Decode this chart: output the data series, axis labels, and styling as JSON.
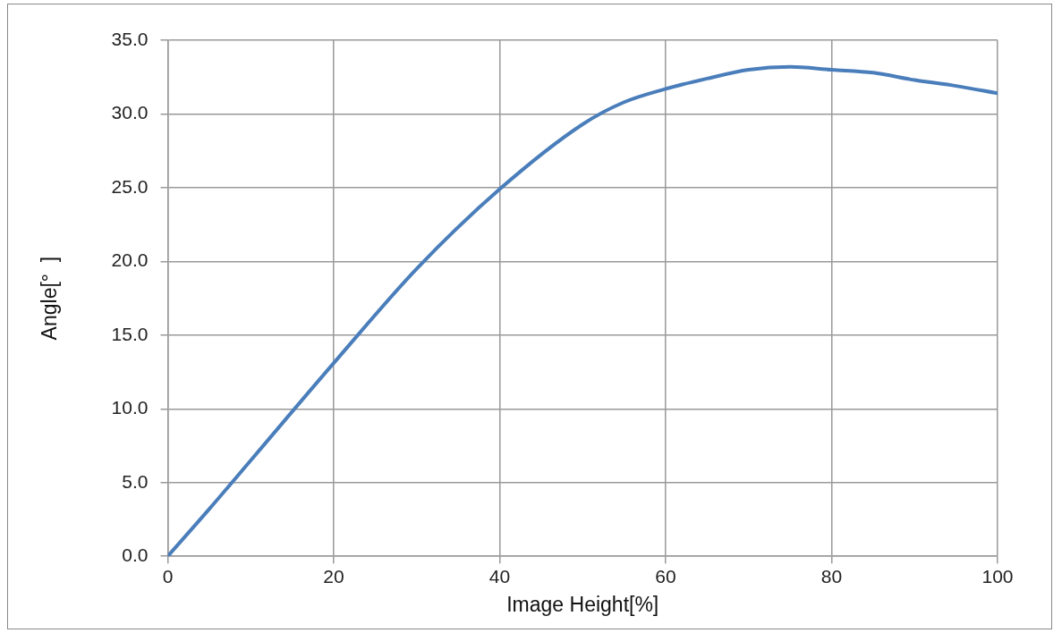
{
  "chart_data": {
    "type": "line",
    "xlabel": "Image Height[%]",
    "ylabel": "Angle[°  ]",
    "x": [
      0,
      5,
      10,
      20,
      30,
      40,
      50,
      55,
      60,
      65,
      70,
      75,
      80,
      85,
      90,
      95,
      100
    ],
    "series": [
      {
        "color": "#4a7ebb",
        "values": [
          0,
          3.2,
          6.5,
          13.1,
          19.5,
          24.9,
          29.3,
          30.8,
          31.7,
          32.4,
          33.0,
          33.2,
          33.0,
          32.8,
          32.3,
          31.9,
          31.4
        ]
      }
    ],
    "xlim": [
      0,
      100
    ],
    "xticks": [
      0,
      20,
      40,
      60,
      80,
      100
    ],
    "ylim": [
      0,
      35
    ],
    "yticks": [
      {
        "value": 0,
        "label": "0.0"
      },
      {
        "value": 5,
        "label": "5.0"
      },
      {
        "value": 10,
        "label": "10.0"
      },
      {
        "value": 15,
        "label": "15.0"
      },
      {
        "value": 20,
        "label": "20.0"
      },
      {
        "value": 25,
        "label": "25.0"
      },
      {
        "value": 30,
        "label": "30.0"
      },
      {
        "value": 35,
        "label": "35.0"
      }
    ],
    "grid": true,
    "marker": "none",
    "line_style": "solid"
  }
}
